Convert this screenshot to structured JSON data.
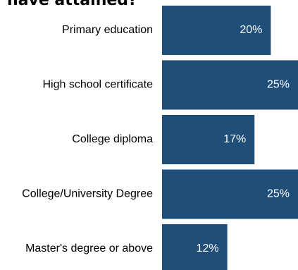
{
  "chart_data": {
    "type": "bar",
    "orientation": "horizontal",
    "title": "have attained?",
    "categories": [
      "Primary education",
      "High school certificate",
      "College diploma",
      "College/University Degree",
      "Master's degree or above"
    ],
    "values": [
      20,
      25,
      17,
      25,
      12
    ],
    "data_labels": [
      "20%",
      "25%",
      "17%",
      "25%",
      "12%"
    ],
    "value_unit": "%",
    "xlim": [
      0,
      25
    ],
    "grid": false,
    "legend": "none",
    "bar_color": "#1F4E79",
    "label_color": "#ffffff"
  }
}
